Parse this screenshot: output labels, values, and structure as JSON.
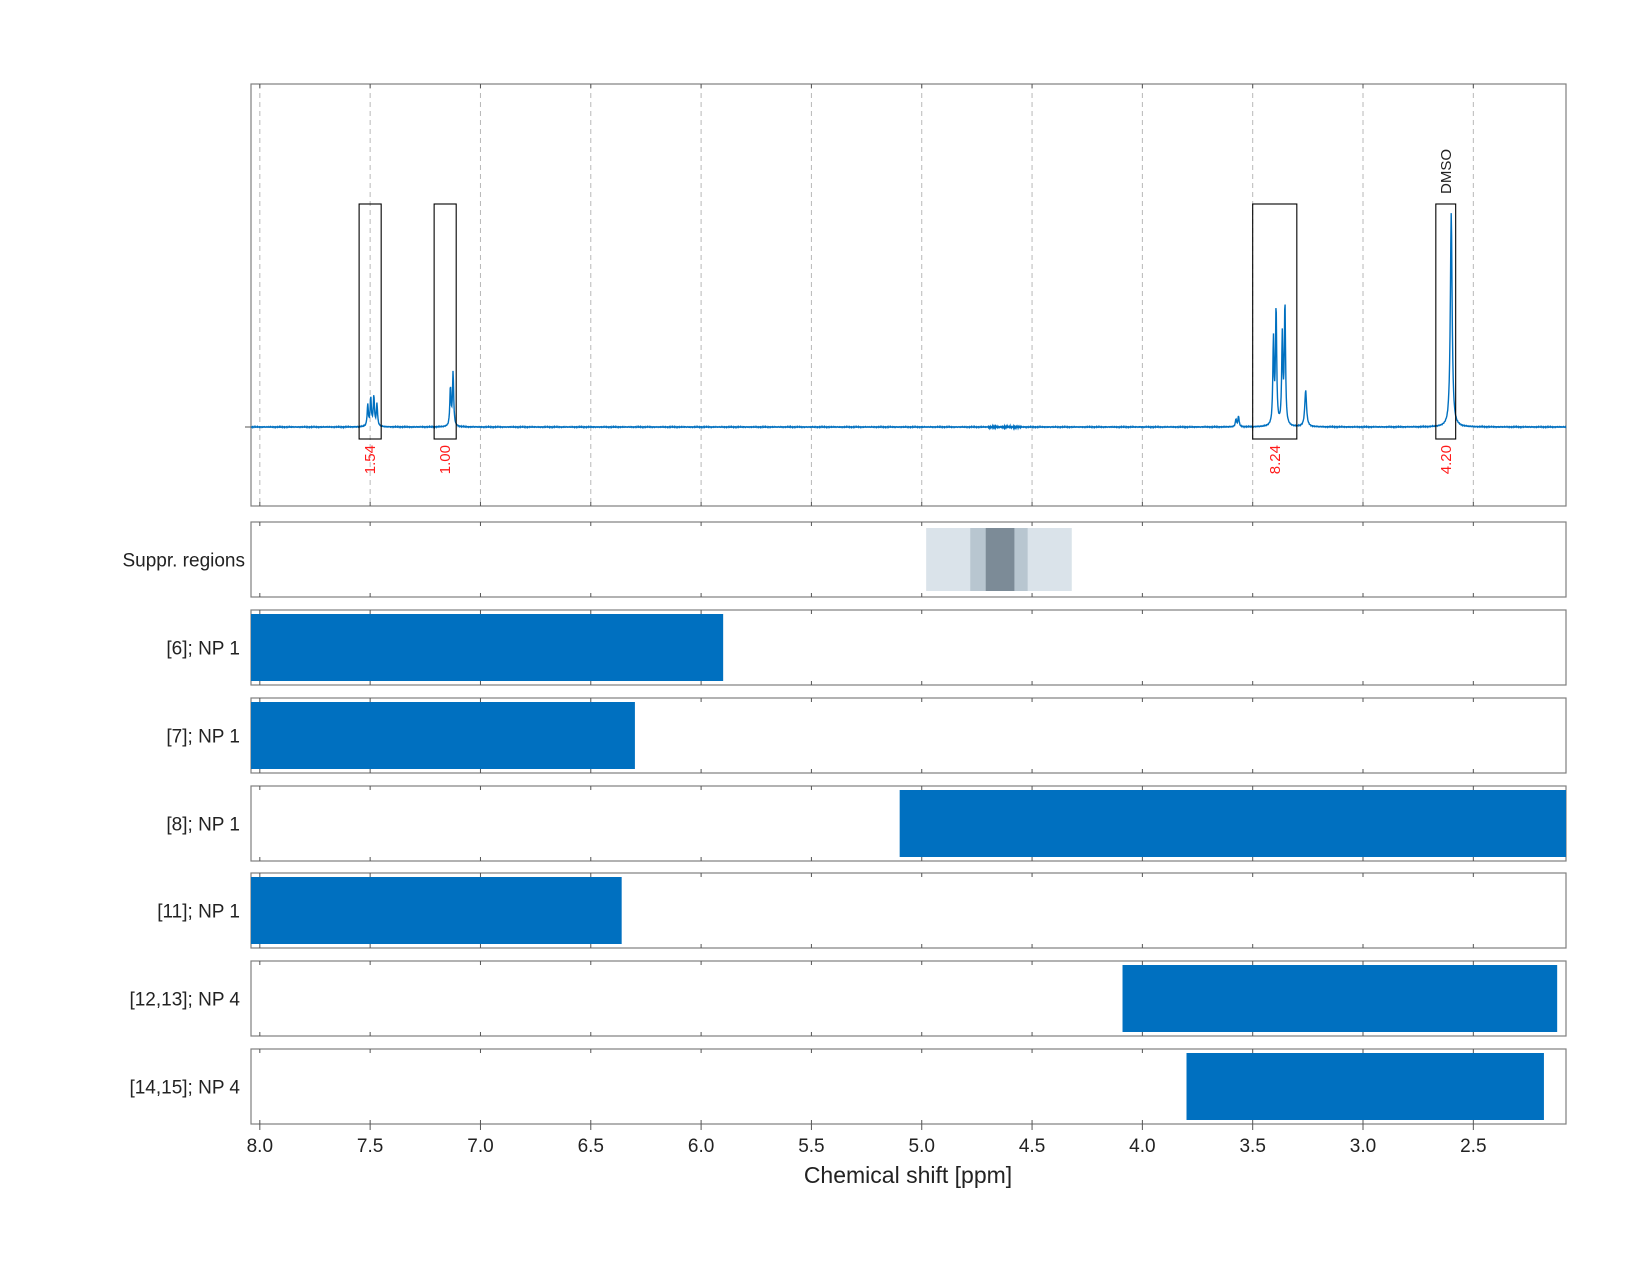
{
  "chart_data": {
    "type": "nmr-spectrum-with-range-bars",
    "xlabel": "Chemical shift [ppm]",
    "xlim": [
      8.04,
      2.08
    ],
    "ticks": [
      {
        "value": 8.0,
        "label": "8.0"
      },
      {
        "value": 7.5,
        "label": "7.5"
      },
      {
        "value": 7.0,
        "label": "7.0"
      },
      {
        "value": 6.5,
        "label": "6.5"
      },
      {
        "value": 6.0,
        "label": "6.0"
      },
      {
        "value": 5.5,
        "label": "5.5"
      },
      {
        "value": 5.0,
        "label": "5.0"
      },
      {
        "value": 4.5,
        "label": "4.5"
      },
      {
        "value": 4.0,
        "label": "4.0"
      },
      {
        "value": 3.5,
        "label": "3.5"
      },
      {
        "value": 3.0,
        "label": "3.0"
      },
      {
        "value": 2.5,
        "label": "2.5"
      }
    ],
    "spectrum_color": "#0070c0",
    "peaks": [
      {
        "center": 7.49,
        "relative_height": 0.14,
        "multiplet": "quartet"
      },
      {
        "center": 7.13,
        "relative_height": 0.25,
        "multiplet": "doublet"
      },
      {
        "center": 3.4,
        "relative_height": 0.55,
        "multiplet": "doublet"
      },
      {
        "center": 3.36,
        "relative_height": 0.57,
        "multiplet": "doublet"
      },
      {
        "center": 3.57,
        "relative_height": 0.05,
        "multiplet": "doublet"
      },
      {
        "center": 3.26,
        "relative_height": 0.17,
        "multiplet": "singlet"
      },
      {
        "center": 2.6,
        "relative_height": 1.0,
        "multiplet": "singlet"
      }
    ],
    "integration_regions": [
      {
        "from": 7.55,
        "to": 7.45,
        "integral": "1.54"
      },
      {
        "from": 7.21,
        "to": 7.11,
        "integral": "1.00"
      },
      {
        "from": 3.5,
        "to": 3.3,
        "integral": "8.24"
      },
      {
        "from": 2.67,
        "to": 2.58,
        "integral": "4.20",
        "label": "DMSO"
      }
    ],
    "suppression": {
      "label": "Suppr. regions",
      "bands": [
        {
          "from": 4.98,
          "to": 4.32,
          "color": "#dae3ea"
        },
        {
          "from": 4.78,
          "to": 4.52,
          "color": "#b8c6d0"
        },
        {
          "from": 4.71,
          "to": 4.58,
          "color": "#7c8b97"
        }
      ]
    },
    "range_rows": [
      {
        "label": "[6]; NP 1",
        "from": 8.04,
        "to": 5.9
      },
      {
        "label": "[7]; NP 1",
        "from": 8.04,
        "to": 6.3
      },
      {
        "label": "[8]; NP 1",
        "from": 5.1,
        "to": 2.08
      },
      {
        "label": "[11]; NP 1",
        "from": 8.04,
        "to": 6.36
      },
      {
        "label": "[12,13]; NP 4",
        "from": 4.09,
        "to": 2.12
      },
      {
        "label": "[14,15]; NP 4",
        "from": 3.8,
        "to": 2.18
      }
    ],
    "bar_color": "#0070c0"
  }
}
